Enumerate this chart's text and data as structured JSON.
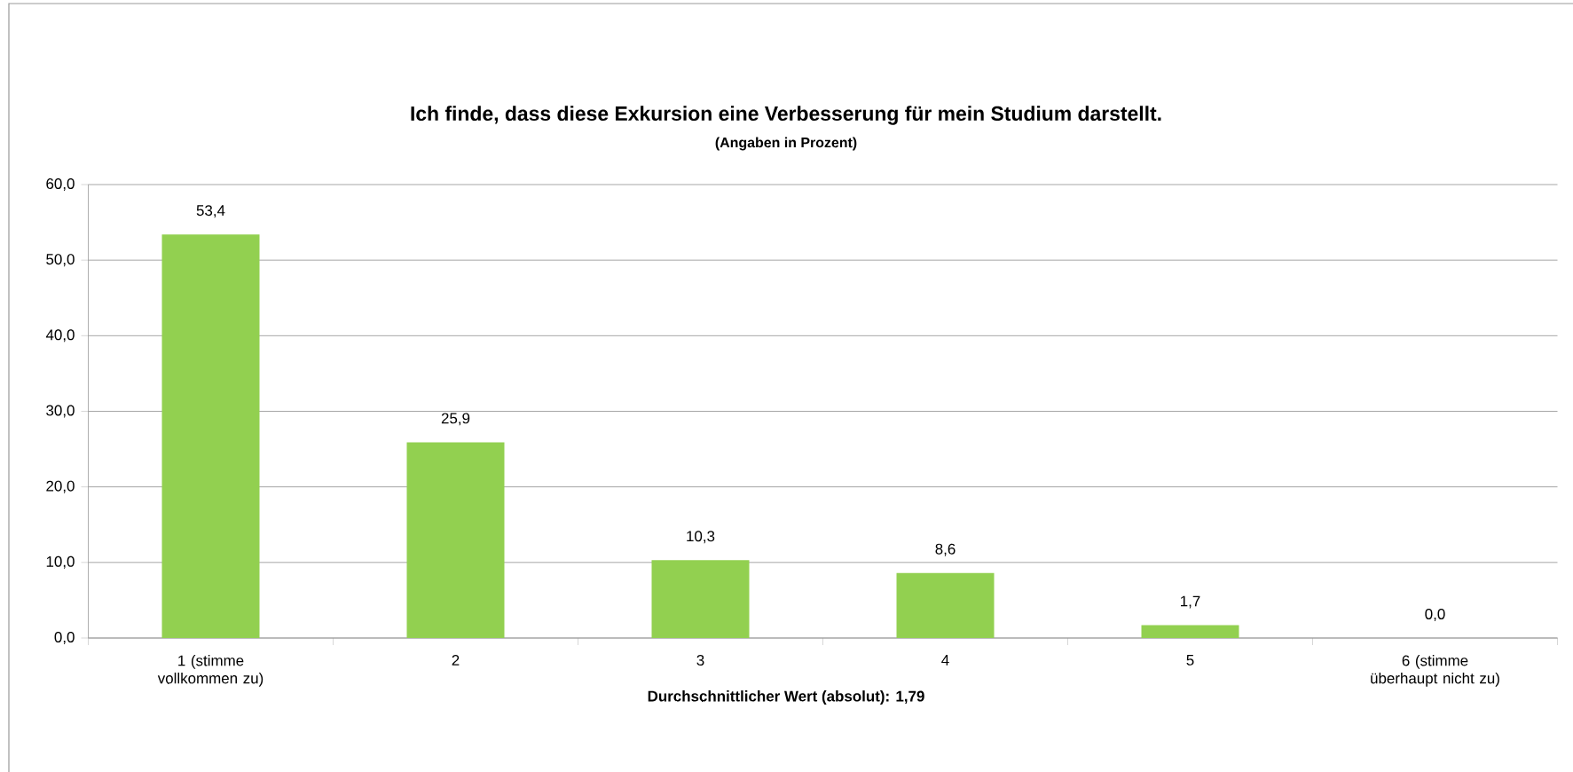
{
  "chart_data": {
    "type": "bar",
    "title": "Ich finde, dass diese Exkursion eine Verbesserung für mein Studium darstellt.",
    "subtitle": "(Angaben in Prozent)",
    "xlabel": "Durchschnittlicher Wert (absolut): 1,79",
    "categories": [
      "1 (stimme vollkommen zu)",
      "2",
      "3",
      "4",
      "5",
      "6 (stimme überhaupt nicht zu)"
    ],
    "values": [
      53.4,
      25.9,
      10.3,
      8.6,
      1.7,
      0.0
    ],
    "value_labels": [
      "53,4",
      "25,9",
      "10,3",
      "8,6",
      "1,7",
      "0,0"
    ],
    "color": "#92d050",
    "ylim": [
      0,
      60
    ],
    "yticks": [
      {
        "value": 0,
        "label": "0,0"
      },
      {
        "value": 10,
        "label": "10,0"
      },
      {
        "value": 20,
        "label": "20,0"
      },
      {
        "value": 30,
        "label": "30,0"
      },
      {
        "value": 40,
        "label": "40,0"
      },
      {
        "value": 50,
        "label": "50,0"
      },
      {
        "value": 60,
        "label": "60,0"
      }
    ],
    "grid": "y"
  }
}
